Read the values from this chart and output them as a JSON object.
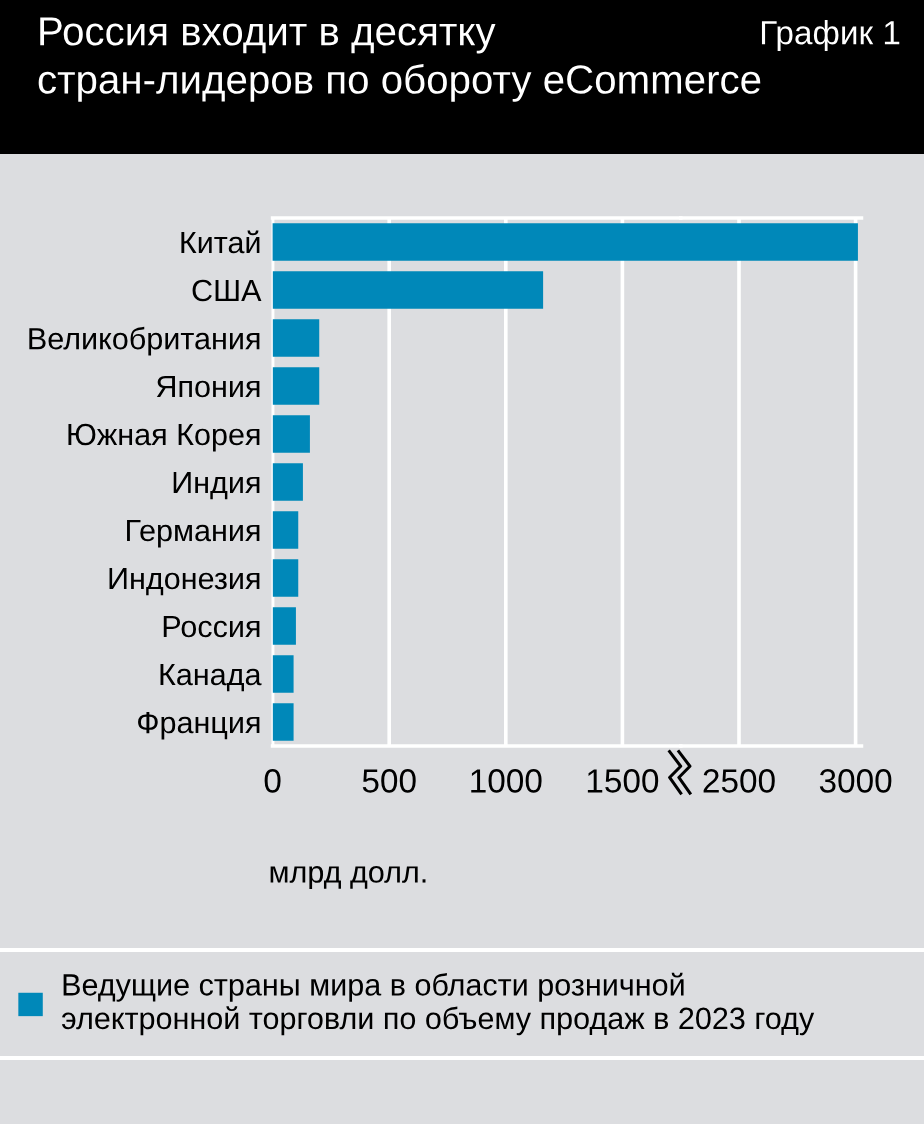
{
  "chart_data": [
    {
      "type": "bar",
      "orientation": "horizontal",
      "title": "Россия входит в десятку\nстран-лидеров по обороту eCommerce",
      "annotations": [
        "График 1"
      ],
      "xlabel": "млрд долл.",
      "categories": [
        "Китай",
        "США",
        "Великобритания",
        "Япония",
        "Южная Корея",
        "Индия",
        "Германия",
        "Индонезия",
        "Россия",
        "Канада",
        "Франция"
      ],
      "series": [
        {
          "name": "Ведущие страны мира в области розничной\nэлектронной торговли по объему продаж в 2023 году",
          "color": "#0088b9",
          "values": [
            null,
            1160,
            200,
            200,
            160,
            130,
            110,
            110,
            100,
            90,
            90
          ]
        }
      ],
      "xlim": [
        0,
        1750
      ],
      "xticks": [
        0,
        500,
        1000,
        1500
      ],
      "grid": "x",
      "legend": "bottom"
    },
    {
      "type": "bar",
      "orientation": "horizontal",
      "series": [
        {
          "color": "#0088b9",
          "values": [
            3010,
            null,
            null,
            null,
            null,
            null,
            null,
            null,
            null,
            null,
            null
          ]
        }
      ],
      "xlim": [
        2250,
        3025
      ],
      "xticks": [
        2500,
        3000
      ],
      "grid": "x",
      "tick_labels": "x"
    }
  ]
}
